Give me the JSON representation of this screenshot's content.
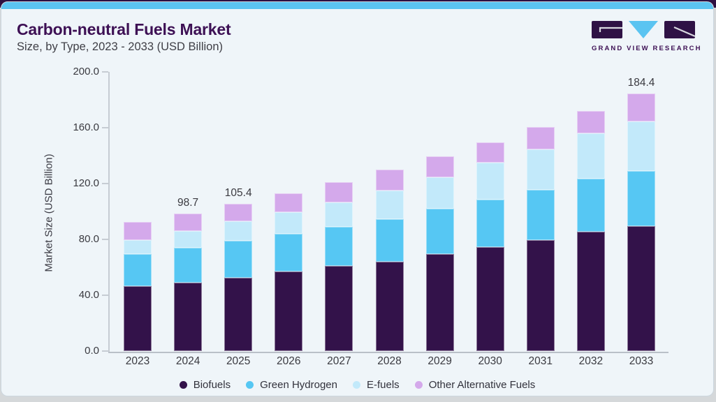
{
  "header": {
    "title": "Carbon-neutral Fuels Market",
    "subtitle": "Size, by Type, 2023 - 2033 (USD Billion)",
    "logo_text": "GRAND VIEW RESEARCH"
  },
  "chart_data": {
    "type": "bar",
    "stacked": true,
    "title": "Carbon-neutral Fuels Market Size, by Type, 2023 - 2033 (USD Billion)",
    "xlabel": "",
    "ylabel": "Market Size (USD Billion)",
    "ylim": [
      0,
      200
    ],
    "ytick_step": 40,
    "ytick_labels": [
      "0.0",
      "40.0",
      "80.0",
      "120.0",
      "160.0",
      "200.0"
    ],
    "grid": false,
    "legend_position": "bottom",
    "categories": [
      "2023",
      "2024",
      "2025",
      "2026",
      "2027",
      "2028",
      "2029",
      "2030",
      "2031",
      "2032",
      "2033"
    ],
    "series": [
      {
        "name": "Biofuels",
        "color": "#33124a",
        "values": [
          46.3,
          49.2,
          52.7,
          57.0,
          60.8,
          64.2,
          69.3,
          74.4,
          79.5,
          85.3,
          89.3
        ]
      },
      {
        "name": "Green Hydrogen",
        "color": "#56c7f3",
        "values": [
          23.0,
          24.9,
          26.3,
          26.9,
          28.3,
          30.5,
          32.5,
          34.0,
          35.9,
          38.3,
          39.6
        ]
      },
      {
        "name": "E-fuels",
        "color": "#c2e9fa",
        "values": [
          10.2,
          11.8,
          14.1,
          15.4,
          17.6,
          20.2,
          22.8,
          26.4,
          28.9,
          32.4,
          35.6
        ]
      },
      {
        "name": "Other Alternative Fuels",
        "color": "#d4a9eb",
        "values": [
          12.9,
          12.8,
          12.3,
          13.7,
          14.5,
          15.1,
          14.8,
          14.7,
          16.0,
          15.9,
          19.9
        ]
      }
    ],
    "totals": [
      92.4,
      98.7,
      105.4,
      113.0,
      121.2,
      130.0,
      139.4,
      149.5,
      160.3,
      171.9,
      184.4
    ],
    "total_labels": {
      "2024": "98.7",
      "2025": "105.4",
      "2033": "184.4"
    }
  },
  "colors": {
    "accent_bar": "#5bc4f1",
    "card_bg": "#eff5f9",
    "page_bg": "#d5d8da",
    "top_strip": "#2e1042",
    "title_text": "#3d1054",
    "axis": "#c6ccd3",
    "tick_text": "#3a3a40"
  }
}
